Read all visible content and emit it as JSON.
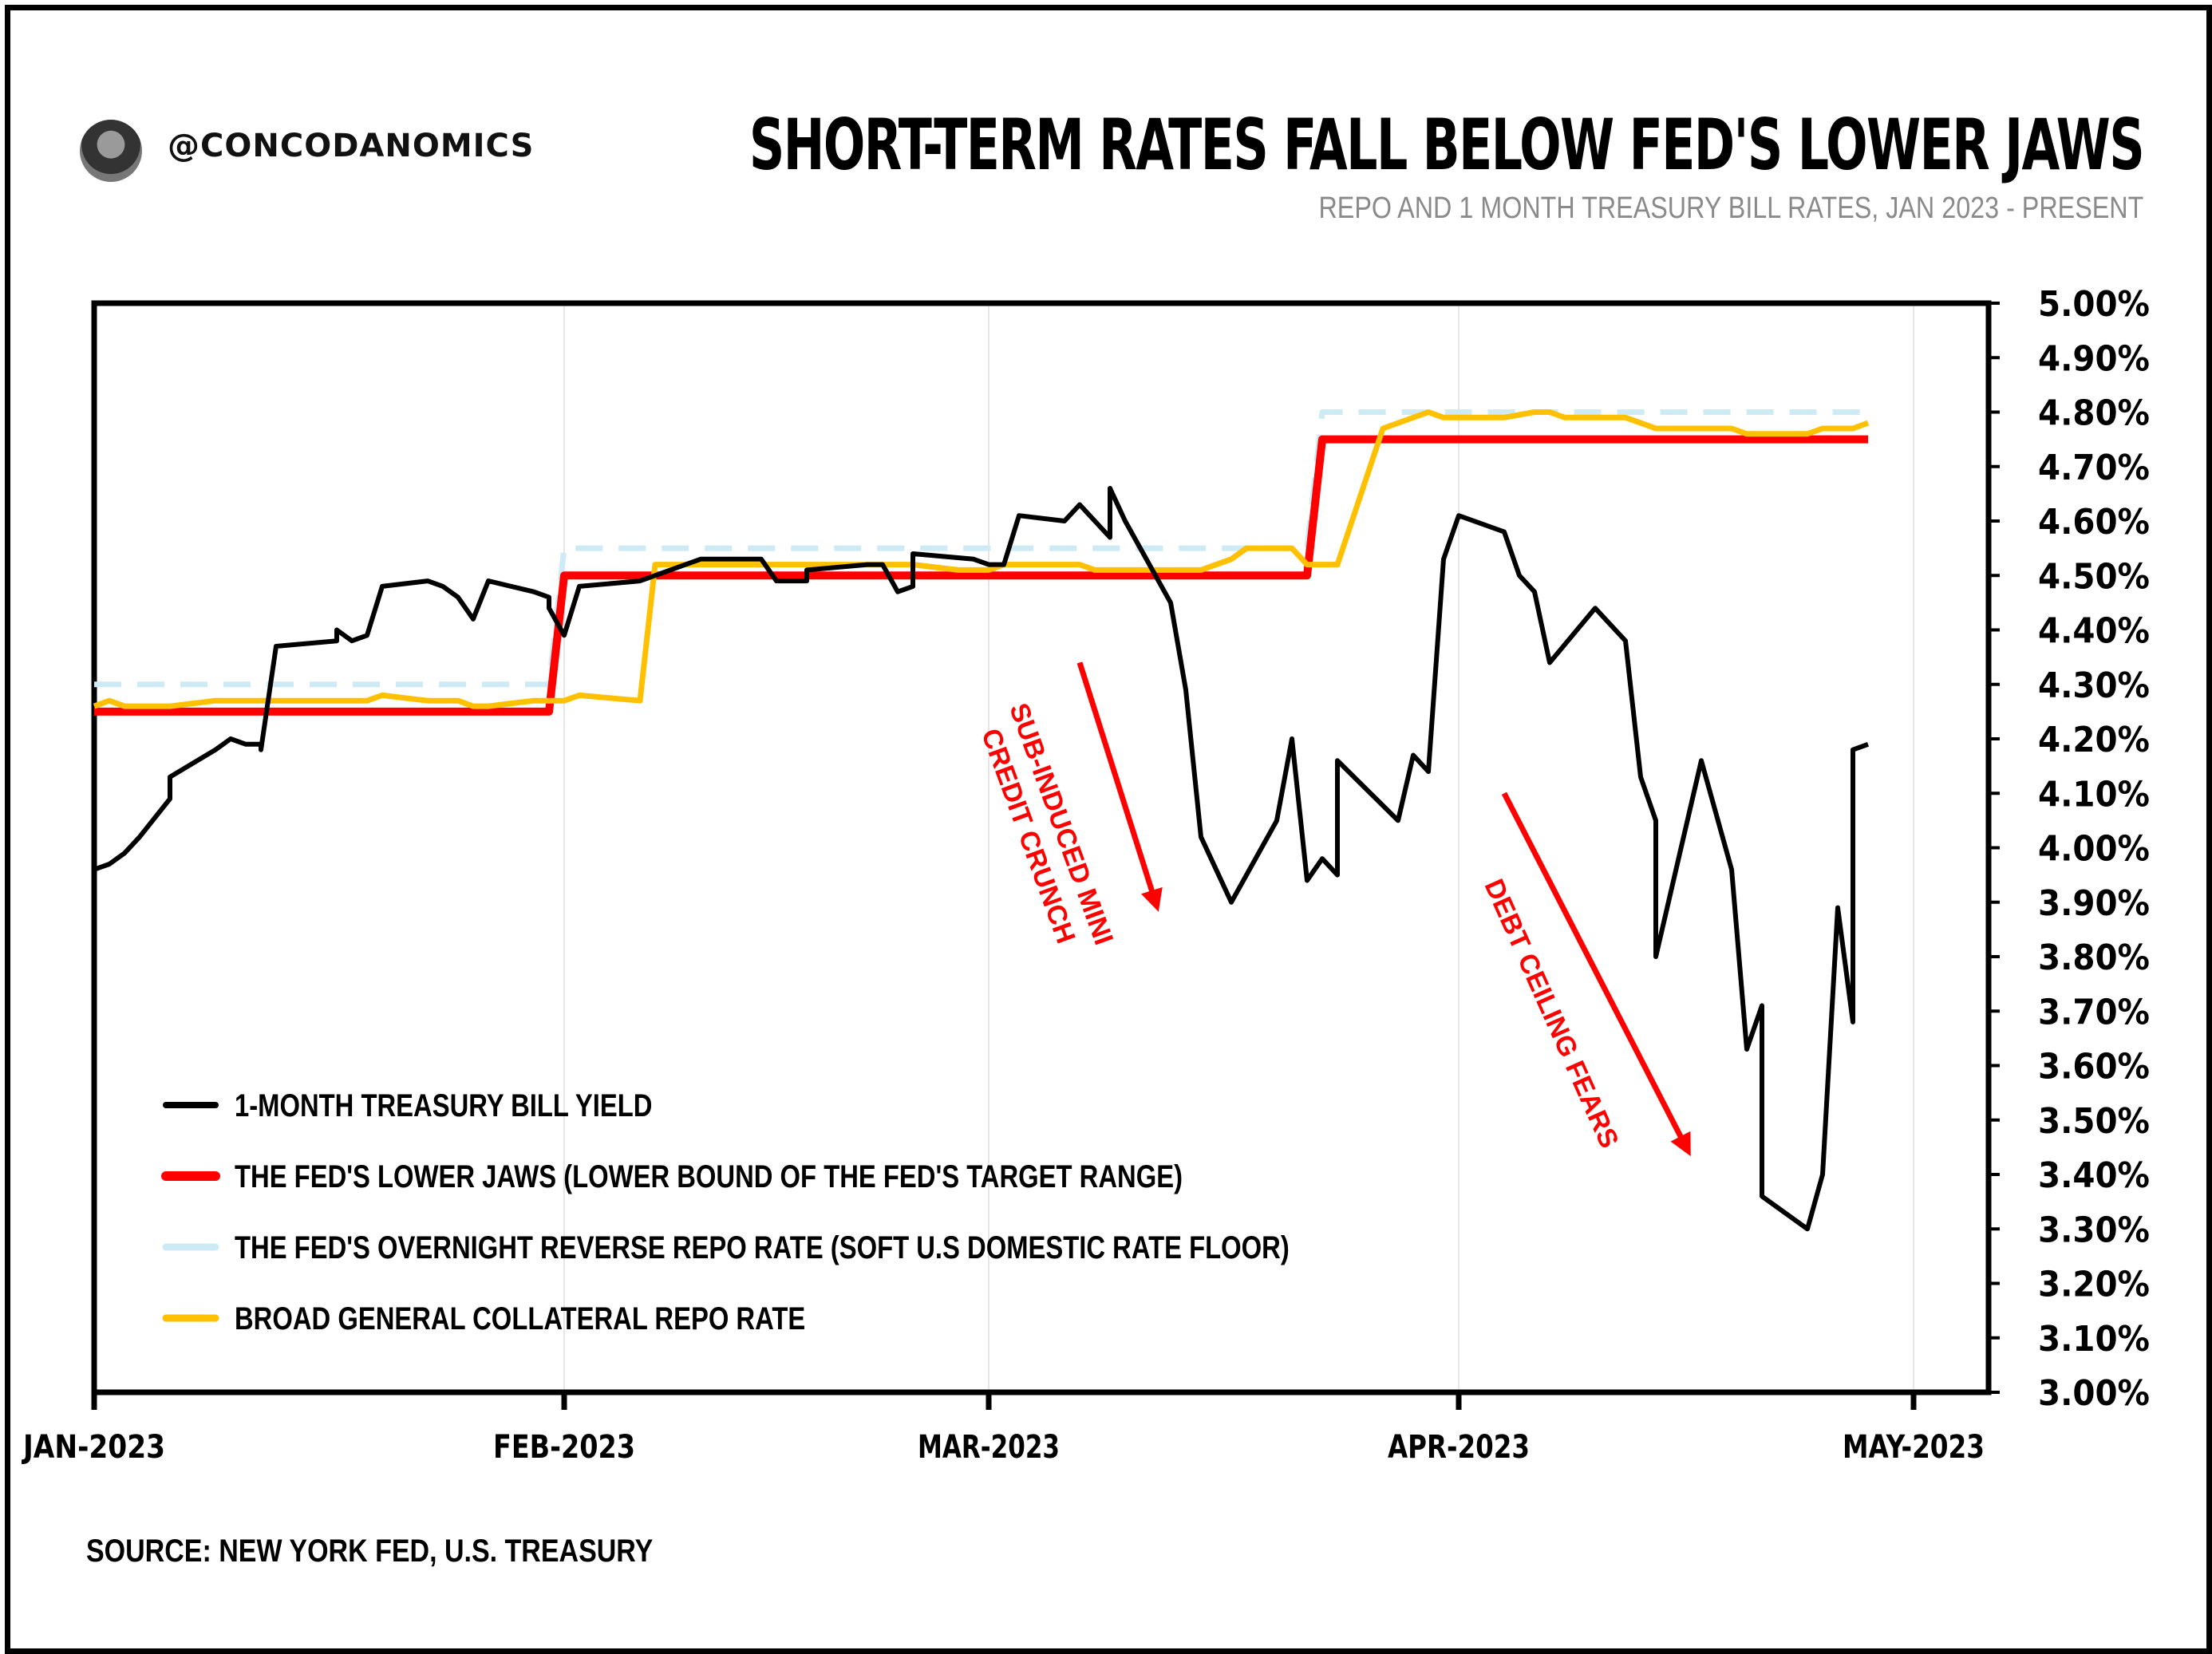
{
  "header": {
    "handle": "@CONCODANOMICS",
    "title": "SHORT-TERM RATES FALL BELOW FED'S LOWER JAWS",
    "subtitle": "REPO AND 1 MONTH TREASURY BILL RATES, JAN 2023 - PRESENT"
  },
  "footer": {
    "source": "SOURCE: NEW YORK FED, U.S. TREASURY"
  },
  "colors": {
    "tbill": "#000000",
    "lower_jaws": "#ff0000",
    "rrp": "#cdeaf5",
    "bgcr": "#ffc000",
    "annotation": "#ff0000"
  },
  "chart_data": {
    "type": "line",
    "title": "SHORT-TERM RATES FALL BELOW FED'S LOWER JAWS",
    "subtitle": "REPO AND 1 MONTH TREASURY BILL RATES, JAN 2023 - PRESENT",
    "xlabel": "",
    "ylabel": "",
    "xlim": [
      "2023-01-01",
      "2023-05-01"
    ],
    "ylim": [
      3.0,
      5.0
    ],
    "y_ticks": [
      "5.00%",
      "4.90%",
      "4.80%",
      "4.70%",
      "4.60%",
      "4.50%",
      "4.40%",
      "4.30%",
      "4.20%",
      "4.10%",
      "4.00%",
      "3.90%",
      "3.80%",
      "3.70%",
      "3.60%",
      "3.50%",
      "3.40%",
      "3.30%",
      "3.20%",
      "3.10%",
      "3.00%"
    ],
    "x_ticks": [
      {
        "date": "2023-01-01",
        "label": "JAN-2023"
      },
      {
        "date": "2023-02-01",
        "label": "FEB-2023"
      },
      {
        "date": "2023-03-01",
        "label": "MAR-2023"
      },
      {
        "date": "2023-04-01",
        "label": "APR-2023"
      },
      {
        "date": "2023-05-01",
        "label": "MAY-2023"
      }
    ],
    "grid": "vertical",
    "legend_position": "bottom-left",
    "series": [
      {
        "name": "1-MONTH TREASURY BILL YIELD",
        "key": "tbill",
        "style": "solid-thin",
        "points": [
          [
            "2023-01-01",
            3.96
          ],
          [
            "2023-01-02",
            3.97
          ],
          [
            "2023-01-03",
            3.99
          ],
          [
            "2023-01-04",
            4.02
          ],
          [
            "2023-01-06",
            4.09
          ],
          [
            "2023-01-06",
            4.13
          ],
          [
            "2023-01-09",
            4.18
          ],
          [
            "2023-01-10",
            4.2
          ],
          [
            "2023-01-11",
            4.19
          ],
          [
            "2023-01-12",
            4.19
          ],
          [
            "2023-01-12",
            4.18
          ],
          [
            "2023-01-13",
            4.37
          ],
          [
            "2023-01-17",
            4.38
          ],
          [
            "2023-01-17",
            4.4
          ],
          [
            "2023-01-18",
            4.38
          ],
          [
            "2023-01-19",
            4.39
          ],
          [
            "2023-01-20",
            4.48
          ],
          [
            "2023-01-23",
            4.49
          ],
          [
            "2023-01-24",
            4.48
          ],
          [
            "2023-01-25",
            4.46
          ],
          [
            "2023-01-26",
            4.42
          ],
          [
            "2023-01-27",
            4.49
          ],
          [
            "2023-01-30",
            4.47
          ],
          [
            "2023-01-31",
            4.46
          ],
          [
            "2023-01-31",
            4.44
          ],
          [
            "2023-02-01",
            4.39
          ],
          [
            "2023-02-02",
            4.48
          ],
          [
            "2023-02-06",
            4.49
          ],
          [
            "2023-02-07",
            4.5
          ],
          [
            "2023-02-08",
            4.51
          ],
          [
            "2023-02-09",
            4.52
          ],
          [
            "2023-02-10",
            4.53
          ],
          [
            "2023-02-13",
            4.53
          ],
          [
            "2023-02-14",
            4.53
          ],
          [
            "2023-02-15",
            4.49
          ],
          [
            "2023-02-17",
            4.49
          ],
          [
            "2023-02-17",
            4.51
          ],
          [
            "2023-02-21",
            4.52
          ],
          [
            "2023-02-22",
            4.52
          ],
          [
            "2023-02-23",
            4.47
          ],
          [
            "2023-02-24",
            4.48
          ],
          [
            "2023-02-24",
            4.54
          ],
          [
            "2023-02-28",
            4.53
          ],
          [
            "2023-03-01",
            4.52
          ],
          [
            "2023-03-02",
            4.52
          ],
          [
            "2023-03-03",
            4.61
          ],
          [
            "2023-03-06",
            4.6
          ],
          [
            "2023-03-07",
            4.63
          ],
          [
            "2023-03-08",
            4.6
          ],
          [
            "2023-03-09",
            4.57
          ],
          [
            "2023-03-09",
            4.66
          ],
          [
            "2023-03-10",
            4.6
          ],
          [
            "2023-03-13",
            4.45
          ],
          [
            "2023-03-14",
            4.29
          ],
          [
            "2023-03-15",
            4.02
          ],
          [
            "2023-03-16",
            3.96
          ],
          [
            "2023-03-17",
            3.9
          ],
          [
            "2023-03-20",
            4.05
          ],
          [
            "2023-03-21",
            4.2
          ],
          [
            "2023-03-22",
            3.94
          ],
          [
            "2023-03-23",
            3.98
          ],
          [
            "2023-03-24",
            3.95
          ],
          [
            "2023-03-24",
            4.16
          ],
          [
            "2023-03-28",
            4.05
          ],
          [
            "2023-03-29",
            4.17
          ],
          [
            "2023-03-30",
            4.14
          ],
          [
            "2023-03-31",
            4.53
          ],
          [
            "2023-04-01",
            4.61
          ],
          [
            "2023-04-04",
            4.58
          ],
          [
            "2023-04-05",
            4.5
          ],
          [
            "2023-04-06",
            4.47
          ],
          [
            "2023-04-07",
            4.34
          ],
          [
            "2023-04-10",
            4.44
          ],
          [
            "2023-04-12",
            4.38
          ],
          [
            "2023-04-13",
            4.13
          ],
          [
            "2023-04-14",
            4.05
          ],
          [
            "2023-04-14",
            3.8
          ],
          [
            "2023-04-17",
            4.16
          ],
          [
            "2023-04-19",
            3.96
          ],
          [
            "2023-04-20",
            3.63
          ],
          [
            "2023-04-21",
            3.71
          ],
          [
            "2023-04-21",
            3.36
          ],
          [
            "2023-04-24",
            3.3
          ],
          [
            "2023-04-25",
            3.4
          ],
          [
            "2023-04-26",
            3.89
          ],
          [
            "2023-04-27",
            3.68
          ],
          [
            "2023-04-27",
            4.18
          ],
          [
            "2023-04-28",
            4.19
          ]
        ]
      },
      {
        "name": "THE FED'S LOWER JAWS (LOWER BOUND OF THE FED'S TARGET RANGE)",
        "key": "lower_jaws",
        "style": "solid-thick",
        "points": [
          [
            "2023-01-01",
            4.25
          ],
          [
            "2023-01-31",
            4.25
          ],
          [
            "2023-02-01",
            4.5
          ],
          [
            "2023-03-22",
            4.5
          ],
          [
            "2023-03-23",
            4.75
          ],
          [
            "2023-04-28",
            4.75
          ]
        ]
      },
      {
        "name": "THE FED'S OVERNIGHT REVERSE REPO RATE (SOFT U.S DOMESTIC RATE FLOOR)",
        "key": "rrp",
        "style": "dashed",
        "points": [
          [
            "2023-01-01",
            4.3
          ],
          [
            "2023-01-31",
            4.3
          ],
          [
            "2023-02-01",
            4.55
          ],
          [
            "2023-03-22",
            4.55
          ],
          [
            "2023-03-23",
            4.8
          ],
          [
            "2023-04-28",
            4.8
          ]
        ]
      },
      {
        "name": "BROAD GENERAL COLLATERAL REPO RATE",
        "key": "bgcr",
        "style": "solid",
        "points": [
          [
            "2023-01-01",
            4.26
          ],
          [
            "2023-01-02",
            4.27
          ],
          [
            "2023-01-03",
            4.26
          ],
          [
            "2023-01-06",
            4.26
          ],
          [
            "2023-01-09",
            4.27
          ],
          [
            "2023-01-17",
            4.27
          ],
          [
            "2023-01-19",
            4.27
          ],
          [
            "2023-01-20",
            4.28
          ],
          [
            "2023-01-23",
            4.27
          ],
          [
            "2023-01-25",
            4.27
          ],
          [
            "2023-01-26",
            4.26
          ],
          [
            "2023-01-27",
            4.26
          ],
          [
            "2023-01-30",
            4.27
          ],
          [
            "2023-02-01",
            4.27
          ],
          [
            "2023-02-02",
            4.28
          ],
          [
            "2023-02-06",
            4.27
          ],
          [
            "2023-02-07",
            4.52
          ],
          [
            "2023-02-21",
            4.52
          ],
          [
            "2023-02-24",
            4.52
          ],
          [
            "2023-02-27",
            4.51
          ],
          [
            "2023-03-01",
            4.51
          ],
          [
            "2023-03-02",
            4.52
          ],
          [
            "2023-03-07",
            4.52
          ],
          [
            "2023-03-08",
            4.51
          ],
          [
            "2023-03-15",
            4.51
          ],
          [
            "2023-03-17",
            4.53
          ],
          [
            "2023-03-18",
            4.55
          ],
          [
            "2023-03-20",
            4.55
          ],
          [
            "2023-03-21",
            4.55
          ],
          [
            "2023-03-22",
            4.52
          ],
          [
            "2023-03-24",
            4.52
          ],
          [
            "2023-03-27",
            4.77
          ],
          [
            "2023-03-30",
            4.8
          ],
          [
            "2023-03-31",
            4.79
          ],
          [
            "2023-04-04",
            4.79
          ],
          [
            "2023-04-06",
            4.8
          ],
          [
            "2023-04-07",
            4.8
          ],
          [
            "2023-04-08",
            4.79
          ],
          [
            "2023-04-12",
            4.79
          ],
          [
            "2023-04-13",
            4.78
          ],
          [
            "2023-04-14",
            4.77
          ],
          [
            "2023-04-19",
            4.77
          ],
          [
            "2023-04-20",
            4.76
          ],
          [
            "2023-04-24",
            4.76
          ],
          [
            "2023-04-25",
            4.77
          ],
          [
            "2023-04-27",
            4.77
          ],
          [
            "2023-04-28",
            4.78
          ]
        ]
      }
    ],
    "annotations": [
      {
        "lines": [
          "SUB-INDUCED MINI",
          "CREDIT CRUNCH"
        ],
        "arrow_from": [
          "2023-03-07",
          4.34
        ],
        "arrow_to": [
          "2023-03-12",
          3.9
        ]
      },
      {
        "lines": [
          "DEBT CEILING FEARS"
        ],
        "arrow_from": [
          "2023-04-04",
          4.1
        ],
        "arrow_to": [
          "2023-04-16",
          3.45
        ]
      }
    ]
  }
}
